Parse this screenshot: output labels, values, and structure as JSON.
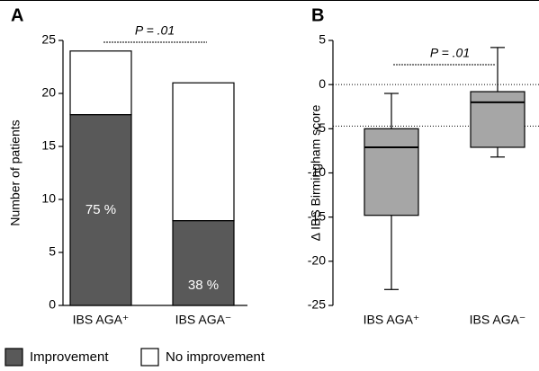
{
  "chart_data": [
    {
      "type": "stacked_bar",
      "panel": "A",
      "ylabel": "Number of patients",
      "categories": [
        "IBS AGA⁺",
        "IBS AGA⁻"
      ],
      "series": [
        {
          "name": "Improvement",
          "color": "#595959",
          "values": [
            18,
            8
          ]
        },
        {
          "name": "No improvement",
          "color": "#ffffff",
          "values": [
            6,
            13
          ]
        }
      ],
      "segment_labels": [
        "75 %",
        "38 %"
      ],
      "ylim": [
        0,
        25
      ],
      "yticks": [
        0,
        5,
        10,
        15,
        20,
        25
      ],
      "annotation": "P = .01"
    },
    {
      "type": "box",
      "panel": "B",
      "ylabel": "Δ IBS Birmingham score",
      "categories": [
        "IBS AGA⁺",
        "IBS AGA⁻"
      ],
      "color": "#a6a6a6",
      "boxes": [
        {
          "low": -23.2,
          "q1": -14.8,
          "median": -7.1,
          "q3": -5,
          "high": -1
        },
        {
          "low": -8.2,
          "q1": -7.1,
          "median": -2,
          "q3": -0.8,
          "high": 4.2
        }
      ],
      "reference_lines": [
        0,
        -4.7
      ],
      "ylim": [
        -25,
        5
      ],
      "yticks": [
        5,
        0,
        -5,
        -10,
        -15,
        -20,
        -25
      ],
      "annotation": "P = .01"
    }
  ]
}
